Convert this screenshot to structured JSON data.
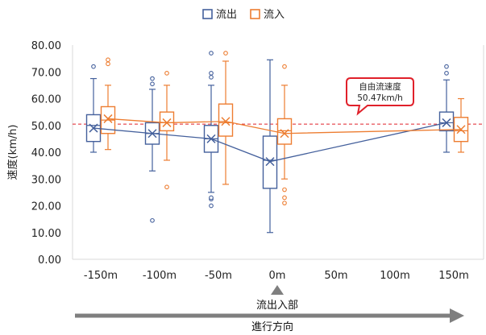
{
  "chart_data": {
    "type": "boxplot",
    "legend": {
      "position": "top-center",
      "entries": [
        "流出",
        "流入"
      ]
    },
    "ylabel": "速度(km/h)",
    "ylim": [
      0,
      80
    ],
    "yticks": [
      "0.00",
      "10.00",
      "20.00",
      "30.00",
      "40.00",
      "50.00",
      "60.00",
      "70.00",
      "80.00"
    ],
    "categories": [
      "-150m",
      "-100m",
      "-50m",
      "0m",
      "50m",
      "100m",
      "150m"
    ],
    "series": [
      {
        "name": "流出",
        "color": "#44609c",
        "boxes": [
          {
            "category": "-150m",
            "min": 40,
            "q1": 44,
            "median": 50,
            "q3": 54,
            "max": 67.5,
            "mean": 49,
            "outliers": [
              72
            ]
          },
          {
            "category": "-100m",
            "min": 33,
            "q1": 43,
            "median": 47,
            "q3": 51,
            "max": 63.5,
            "mean": 47,
            "outliers": [
              14.5,
              65.5,
              67.5
            ]
          },
          {
            "category": "-50m",
            "min": 25,
            "q1": 40,
            "median": 45,
            "q3": 50,
            "max": 65,
            "mean": 45,
            "outliers": [
              20,
              22.5,
              23,
              68,
              69.5,
              77
            ]
          },
          {
            "category": "0m",
            "min": 10,
            "q1": 26.5,
            "median": 37,
            "q3": 46,
            "max": 74.5,
            "mean": 36.5,
            "outliers": []
          },
          {
            "category": "150m",
            "min": 40,
            "q1": 48,
            "median": 51,
            "q3": 55,
            "max": 67,
            "mean": 51,
            "outliers": [
              69.5,
              72
            ]
          }
        ]
      },
      {
        "name": "流入",
        "color": "#ed7d31",
        "boxes": [
          {
            "category": "-150m",
            "min": 41,
            "q1": 47,
            "median": 52,
            "q3": 57,
            "max": 65,
            "mean": 52.5,
            "outliers": [
              73,
              74.5
            ]
          },
          {
            "category": "-100m",
            "min": 37,
            "q1": 48,
            "median": 51,
            "q3": 55,
            "max": 65,
            "mean": 51,
            "outliers": [
              27,
              69.5
            ]
          },
          {
            "category": "-50m",
            "min": 28,
            "q1": 46,
            "median": 51,
            "q3": 58,
            "max": 74,
            "mean": 51.5,
            "outliers": [
              77
            ]
          },
          {
            "category": "0m",
            "min": 30,
            "q1": 43,
            "median": 48,
            "q3": 52.5,
            "max": 65,
            "mean": 47,
            "outliers": [
              21,
              23,
              26,
              72
            ]
          },
          {
            "category": "150m",
            "min": 40,
            "q1": 44,
            "median": 48,
            "q3": 53,
            "max": 60,
            "mean": 48.5,
            "outliers": []
          }
        ]
      }
    ],
    "reference_line": {
      "value": 50.47,
      "color": "#e0202a"
    },
    "callout": {
      "line1": "自由流速度",
      "line2": "50.47km/h"
    }
  },
  "annotations": {
    "junction_label": "流出入部",
    "direction_label": "進行方向"
  }
}
